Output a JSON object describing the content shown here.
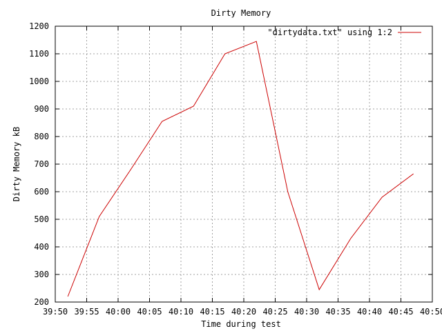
{
  "chart_data": {
    "type": "line",
    "title": "Dirty Memory",
    "xlabel": "Time during test",
    "ylabel": "Dirty Memory kB",
    "xlim": [
      "39:50",
      "40:50"
    ],
    "ylim": [
      200,
      1200
    ],
    "grid": true,
    "legend_position": "top-right",
    "x_ticks": [
      "39:50",
      "39:55",
      "40:00",
      "40:05",
      "40:10",
      "40:15",
      "40:20",
      "40:25",
      "40:30",
      "40:35",
      "40:40",
      "40:45",
      "40:50"
    ],
    "y_ticks": [
      200,
      300,
      400,
      500,
      600,
      700,
      800,
      900,
      1000,
      1100,
      1200
    ],
    "series": [
      {
        "name": "\"dirtydata.txt\" using 1:2",
        "color": "#cc0000",
        "x": [
          "39:52",
          "39:57",
          "40:02",
          "40:07",
          "40:12",
          "40:17",
          "40:22",
          "40:27",
          "40:32",
          "40:37",
          "40:42",
          "40:47"
        ],
        "y": [
          220,
          510,
          680,
          855,
          910,
          1100,
          1145,
          600,
          245,
          430,
          580,
          665
        ]
      }
    ]
  }
}
